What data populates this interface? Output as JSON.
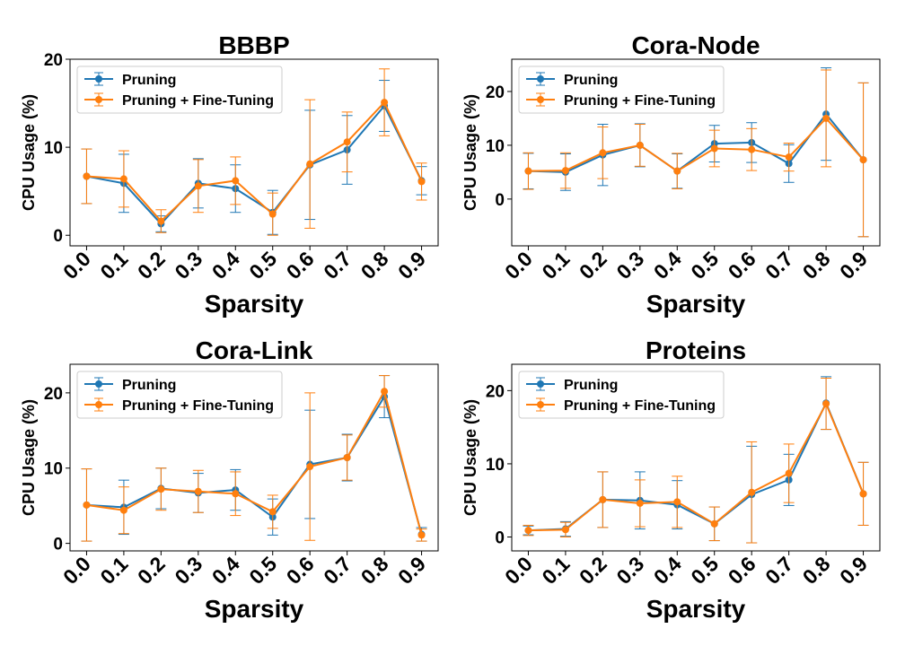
{
  "colors": {
    "pruning": "#1f77b4",
    "pruning_ft": "#ff7f0e"
  },
  "chart_data": [
    {
      "type": "line",
      "title": "BBBP",
      "xlabel": "Sparsity",
      "ylabel": "CPU Usage (%)",
      "categories": [
        "0.0",
        "0.1",
        "0.2",
        "0.3",
        "0.4",
        "0.5",
        "0.6",
        "0.7",
        "0.8",
        "0.9"
      ],
      "ylim": [
        -1.2,
        20
      ],
      "yticks": [
        0,
        10,
        20
      ],
      "legend": "top-left",
      "grid": false,
      "series": [
        {
          "name": "Pruning",
          "values": [
            6.7,
            5.9,
            1.3,
            5.9,
            5.3,
            2.6,
            8.0,
            9.7,
            14.7,
            6.2
          ],
          "errors": [
            3.1,
            3.3,
            0.9,
            2.8,
            2.7,
            2.5,
            6.2,
            3.9,
            2.9,
            1.6
          ]
        },
        {
          "name": "Pruning + Fine-Tuning",
          "values": [
            6.7,
            6.4,
            1.6,
            5.6,
            6.2,
            2.4,
            8.1,
            10.6,
            15.1,
            6.1
          ],
          "errors": [
            3.1,
            3.2,
            1.3,
            3.0,
            2.7,
            2.4,
            7.3,
            3.4,
            3.8,
            2.1
          ]
        }
      ]
    },
    {
      "type": "line",
      "title": "Cora-Node",
      "xlabel": "Sparsity",
      "ylabel": "CPU Usage (%)",
      "categories": [
        "0.0",
        "0.1",
        "0.2",
        "0.3",
        "0.4",
        "0.5",
        "0.6",
        "0.7",
        "0.8",
        "0.9"
      ],
      "ylim": [
        -8.7,
        26
      ],
      "yticks": [
        0,
        10,
        20
      ],
      "legend": "top-left",
      "grid": false,
      "series": [
        {
          "name": "Pruning",
          "values": [
            5.2,
            5.0,
            8.2,
            10.0,
            5.2,
            10.3,
            10.5,
            6.6,
            15.8,
            7.3
          ],
          "errors": [
            3.3,
            3.4,
            5.7,
            4.0,
            3.2,
            3.4,
            3.7,
            3.5,
            8.6,
            14.3
          ]
        },
        {
          "name": "Pruning + Fine-Tuning",
          "values": [
            5.2,
            5.3,
            8.6,
            10.0,
            5.2,
            9.4,
            9.2,
            7.8,
            15.0,
            7.3
          ],
          "errors": [
            3.4,
            3.3,
            4.8,
            3.9,
            3.3,
            3.4,
            3.9,
            2.6,
            9.0,
            14.3
          ]
        }
      ]
    },
    {
      "type": "line",
      "title": "Cora-Link",
      "xlabel": "Sparsity",
      "ylabel": "CPU Usage (%)",
      "categories": [
        "0.0",
        "0.1",
        "0.2",
        "0.3",
        "0.4",
        "0.5",
        "0.6",
        "0.7",
        "0.8",
        "0.9"
      ],
      "ylim": [
        -1.0,
        23.8
      ],
      "yticks": [
        0,
        10,
        20
      ],
      "legend": "top-left",
      "grid": false,
      "series": [
        {
          "name": "Pruning",
          "values": [
            5.1,
            4.8,
            7.3,
            6.7,
            7.1,
            3.5,
            10.5,
            11.4,
            19.5,
            1.2
          ],
          "errors": [
            4.8,
            3.6,
            2.7,
            2.6,
            2.7,
            2.4,
            7.2,
            3.1,
            2.8,
            0.9
          ]
        },
        {
          "name": "Pruning + Fine-Tuning",
          "values": [
            5.1,
            4.4,
            7.2,
            6.9,
            6.6,
            4.2,
            10.2,
            11.4,
            20.2,
            1.1
          ],
          "errors": [
            4.8,
            3.1,
            2.8,
            2.8,
            2.9,
            2.2,
            9.8,
            3.0,
            2.1,
            0.8
          ]
        }
      ]
    },
    {
      "type": "line",
      "title": "Proteins",
      "xlabel": "Sparsity",
      "ylabel": "CPU Usage (%)",
      "categories": [
        "0.0",
        "0.1",
        "0.2",
        "0.3",
        "0.4",
        "0.5",
        "0.6",
        "0.7",
        "0.8",
        "0.9"
      ],
      "ylim": [
        -1.9,
        23.6
      ],
      "yticks": [
        0,
        10,
        20
      ],
      "legend": "top-left",
      "grid": false,
      "series": [
        {
          "name": "Pruning",
          "values": [
            0.9,
            1.1,
            5.1,
            5.0,
            4.4,
            1.8,
            5.8,
            7.8,
            18.3,
            5.9
          ],
          "errors": [
            0.6,
            1.0,
            3.8,
            3.9,
            3.3,
            2.3,
            6.6,
            3.5,
            3.6,
            4.3
          ]
        },
        {
          "name": "Pruning + Fine-Tuning",
          "values": [
            0.9,
            1.0,
            5.1,
            4.6,
            4.8,
            1.8,
            6.1,
            8.7,
            18.2,
            5.9
          ],
          "errors": [
            0.7,
            1.0,
            3.8,
            3.2,
            3.5,
            2.3,
            6.9,
            4.0,
            3.5,
            4.3
          ]
        }
      ]
    }
  ]
}
